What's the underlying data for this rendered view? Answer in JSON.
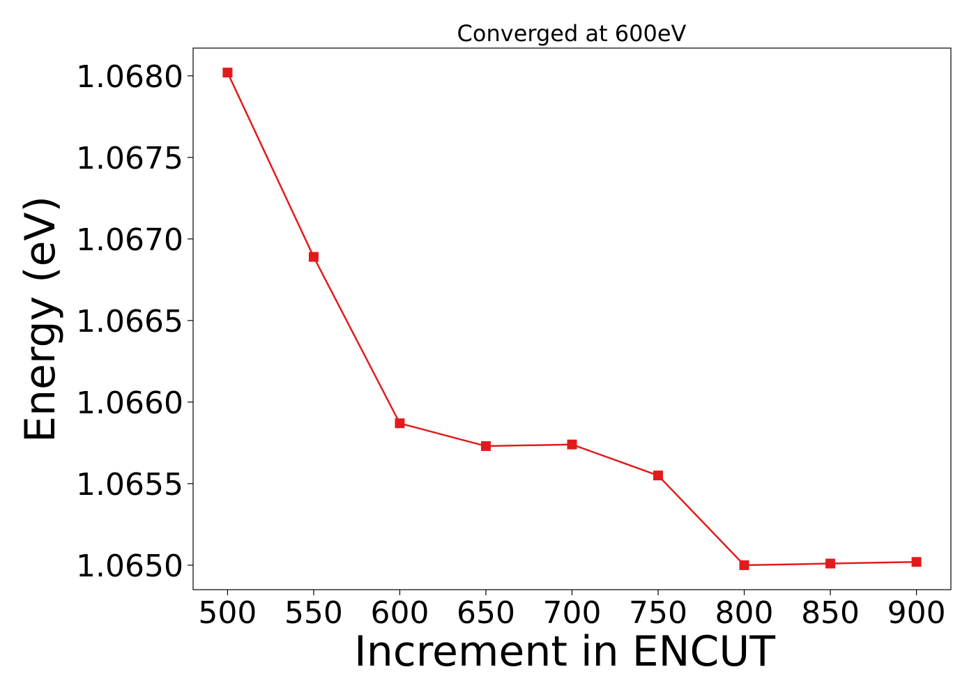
{
  "chart_data": {
    "type": "line",
    "title": "Converged at 600eV",
    "xlabel": "Increment in ENCUT",
    "ylabel": "Energy (eV)",
    "x": [
      500,
      550,
      600,
      650,
      700,
      750,
      800,
      850,
      900
    ],
    "series": [
      {
        "values": [
          1.06802,
          1.06689,
          1.06587,
          1.06573,
          1.06574,
          1.06555,
          1.065,
          1.06501,
          1.06502
        ],
        "color": "#e31a1c",
        "marker": "square"
      }
    ],
    "xticks": [
      {
        "value": 500,
        "label": "500"
      },
      {
        "value": 550,
        "label": "550"
      },
      {
        "value": 600,
        "label": "600"
      },
      {
        "value": 650,
        "label": "650"
      },
      {
        "value": 700,
        "label": "700"
      },
      {
        "value": 750,
        "label": "750"
      },
      {
        "value": 800,
        "label": "800"
      },
      {
        "value": 850,
        "label": "850"
      },
      {
        "value": 900,
        "label": "900"
      }
    ],
    "yticks": [
      {
        "value": 1.065,
        "label": "1.0650"
      },
      {
        "value": 1.0655,
        "label": "1.0655"
      },
      {
        "value": 1.066,
        "label": "1.0660"
      },
      {
        "value": 1.0665,
        "label": "1.0665"
      },
      {
        "value": 1.067,
        "label": "1.0670"
      },
      {
        "value": 1.0675,
        "label": "1.0675"
      },
      {
        "value": 1.068,
        "label": "1.0680"
      }
    ],
    "xlim": [
      480,
      920
    ],
    "ylim": [
      1.06485,
      1.06817
    ],
    "grid": false,
    "legend": "none"
  }
}
